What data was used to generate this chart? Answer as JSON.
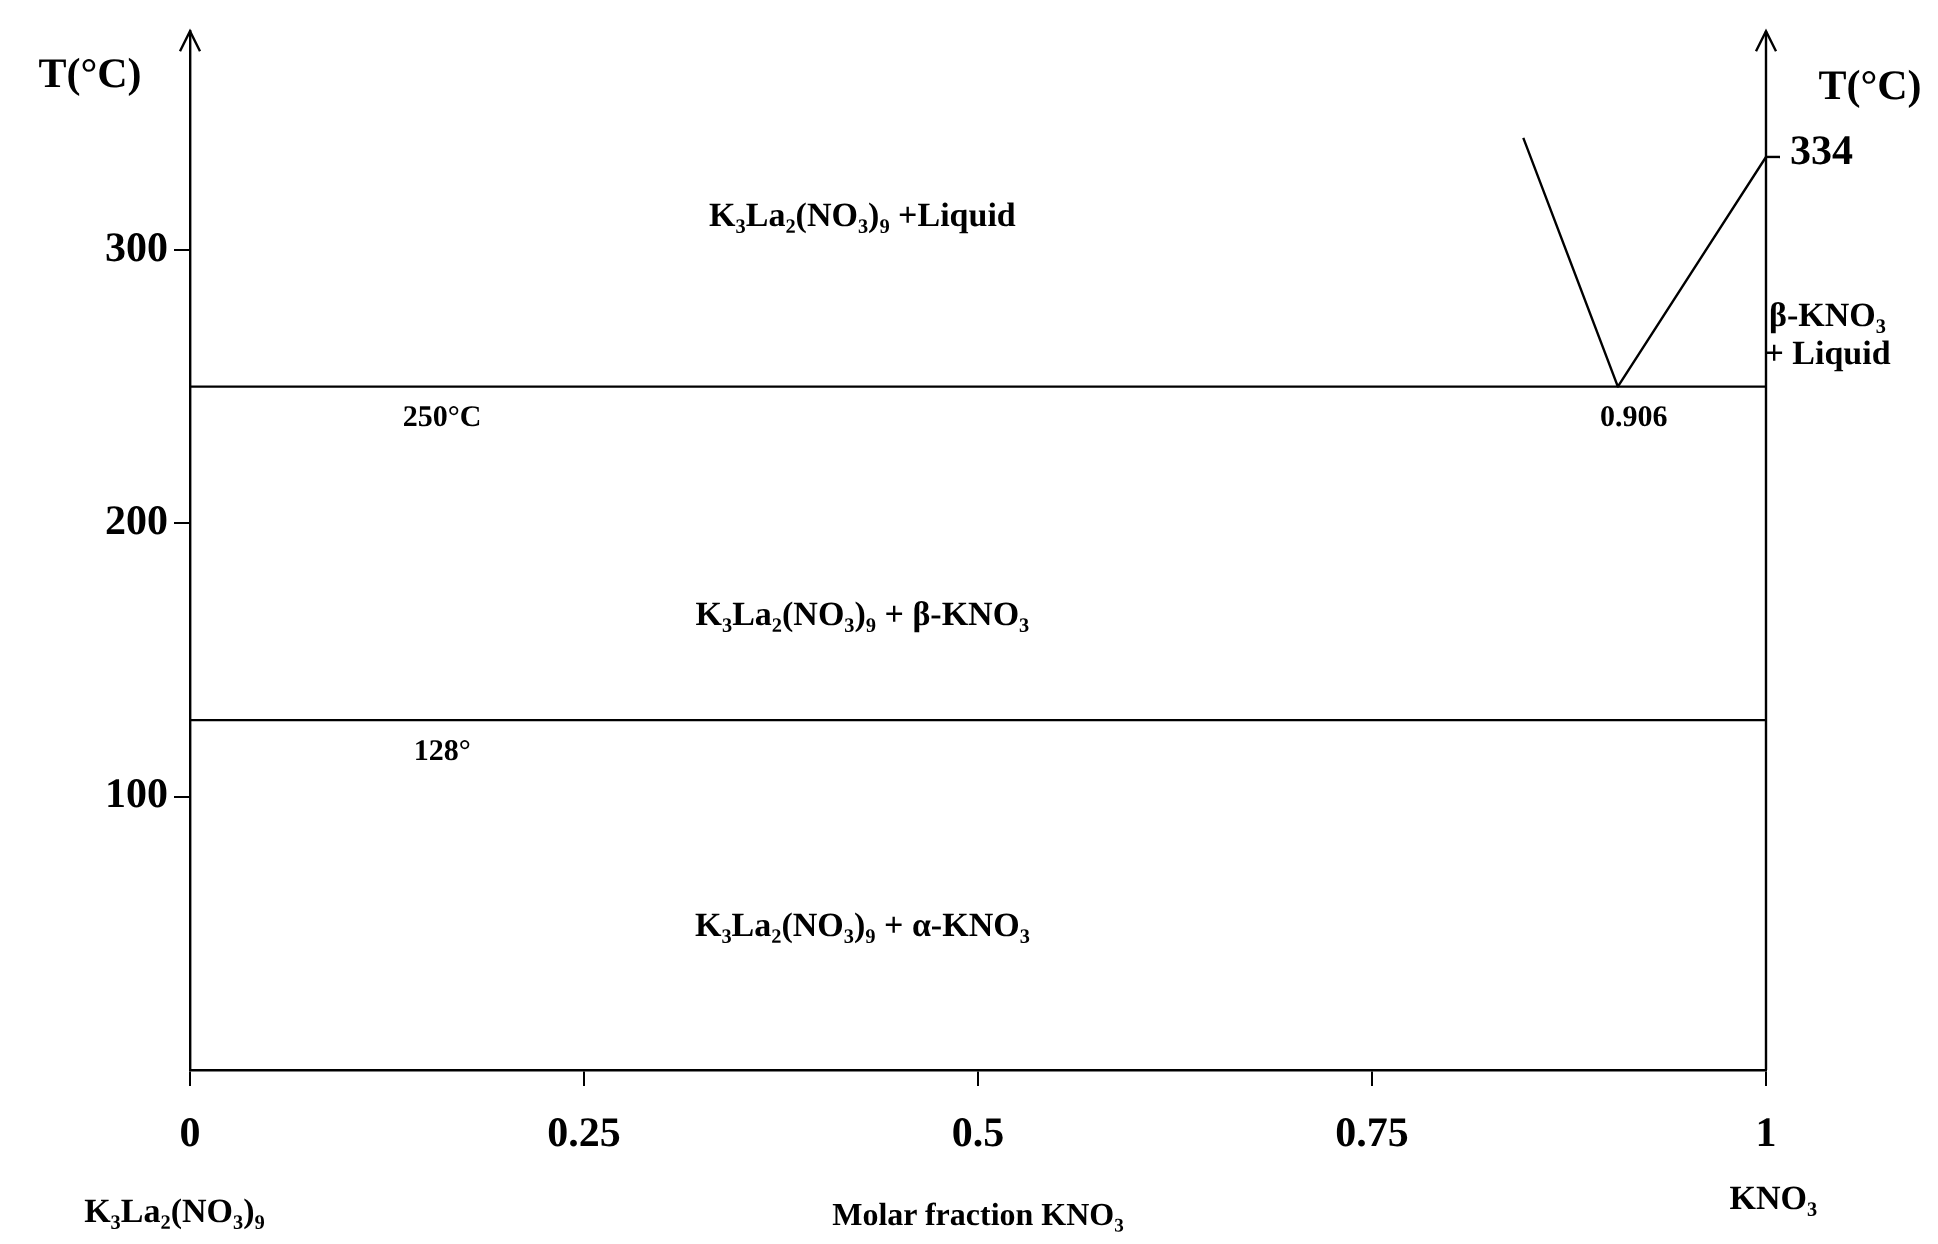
{
  "chart_data": {
    "type": "line",
    "xlabel": "Molar fraction KNO₃",
    "ylabel": "T(°C)",
    "y2label": "T(°C)",
    "xlim": [
      0,
      1
    ],
    "xticks": [
      0,
      0.25,
      0.5,
      0.75,
      1
    ],
    "ylim": [
      0,
      380
    ],
    "yticks": [
      100,
      200,
      300
    ],
    "series": [
      {
        "color": "#000000",
        "x": [
          0.846,
          0.906,
          1
        ],
        "values": [
          341,
          250,
          334
        ]
      }
    ],
    "ref_lines": [
      {
        "axis": "y",
        "value": 250,
        "label": "250°C",
        "color": "#000000"
      },
      {
        "axis": "y",
        "value": 128,
        "label": "128°",
        "color": "#000000"
      }
    ],
    "annotations": [
      "K₃La₂(NO₃)₉ +Liquid",
      "K₃La₂(NO₃)₉ + β-KNO₃",
      "K₃La₂(NO₃)₉ + α-KNO₃",
      "β-KNO₃\n+ Liquid",
      "K₃La₂(NO₃)₉",
      "KNO₃",
      {
        "text": "0.906",
        "x": 0.906,
        "y": 250
      },
      {
        "text": "334",
        "x": 1,
        "y": 334
      }
    ],
    "grid": false,
    "legend": false,
    "marker": "none",
    "line_style": "solid"
  }
}
